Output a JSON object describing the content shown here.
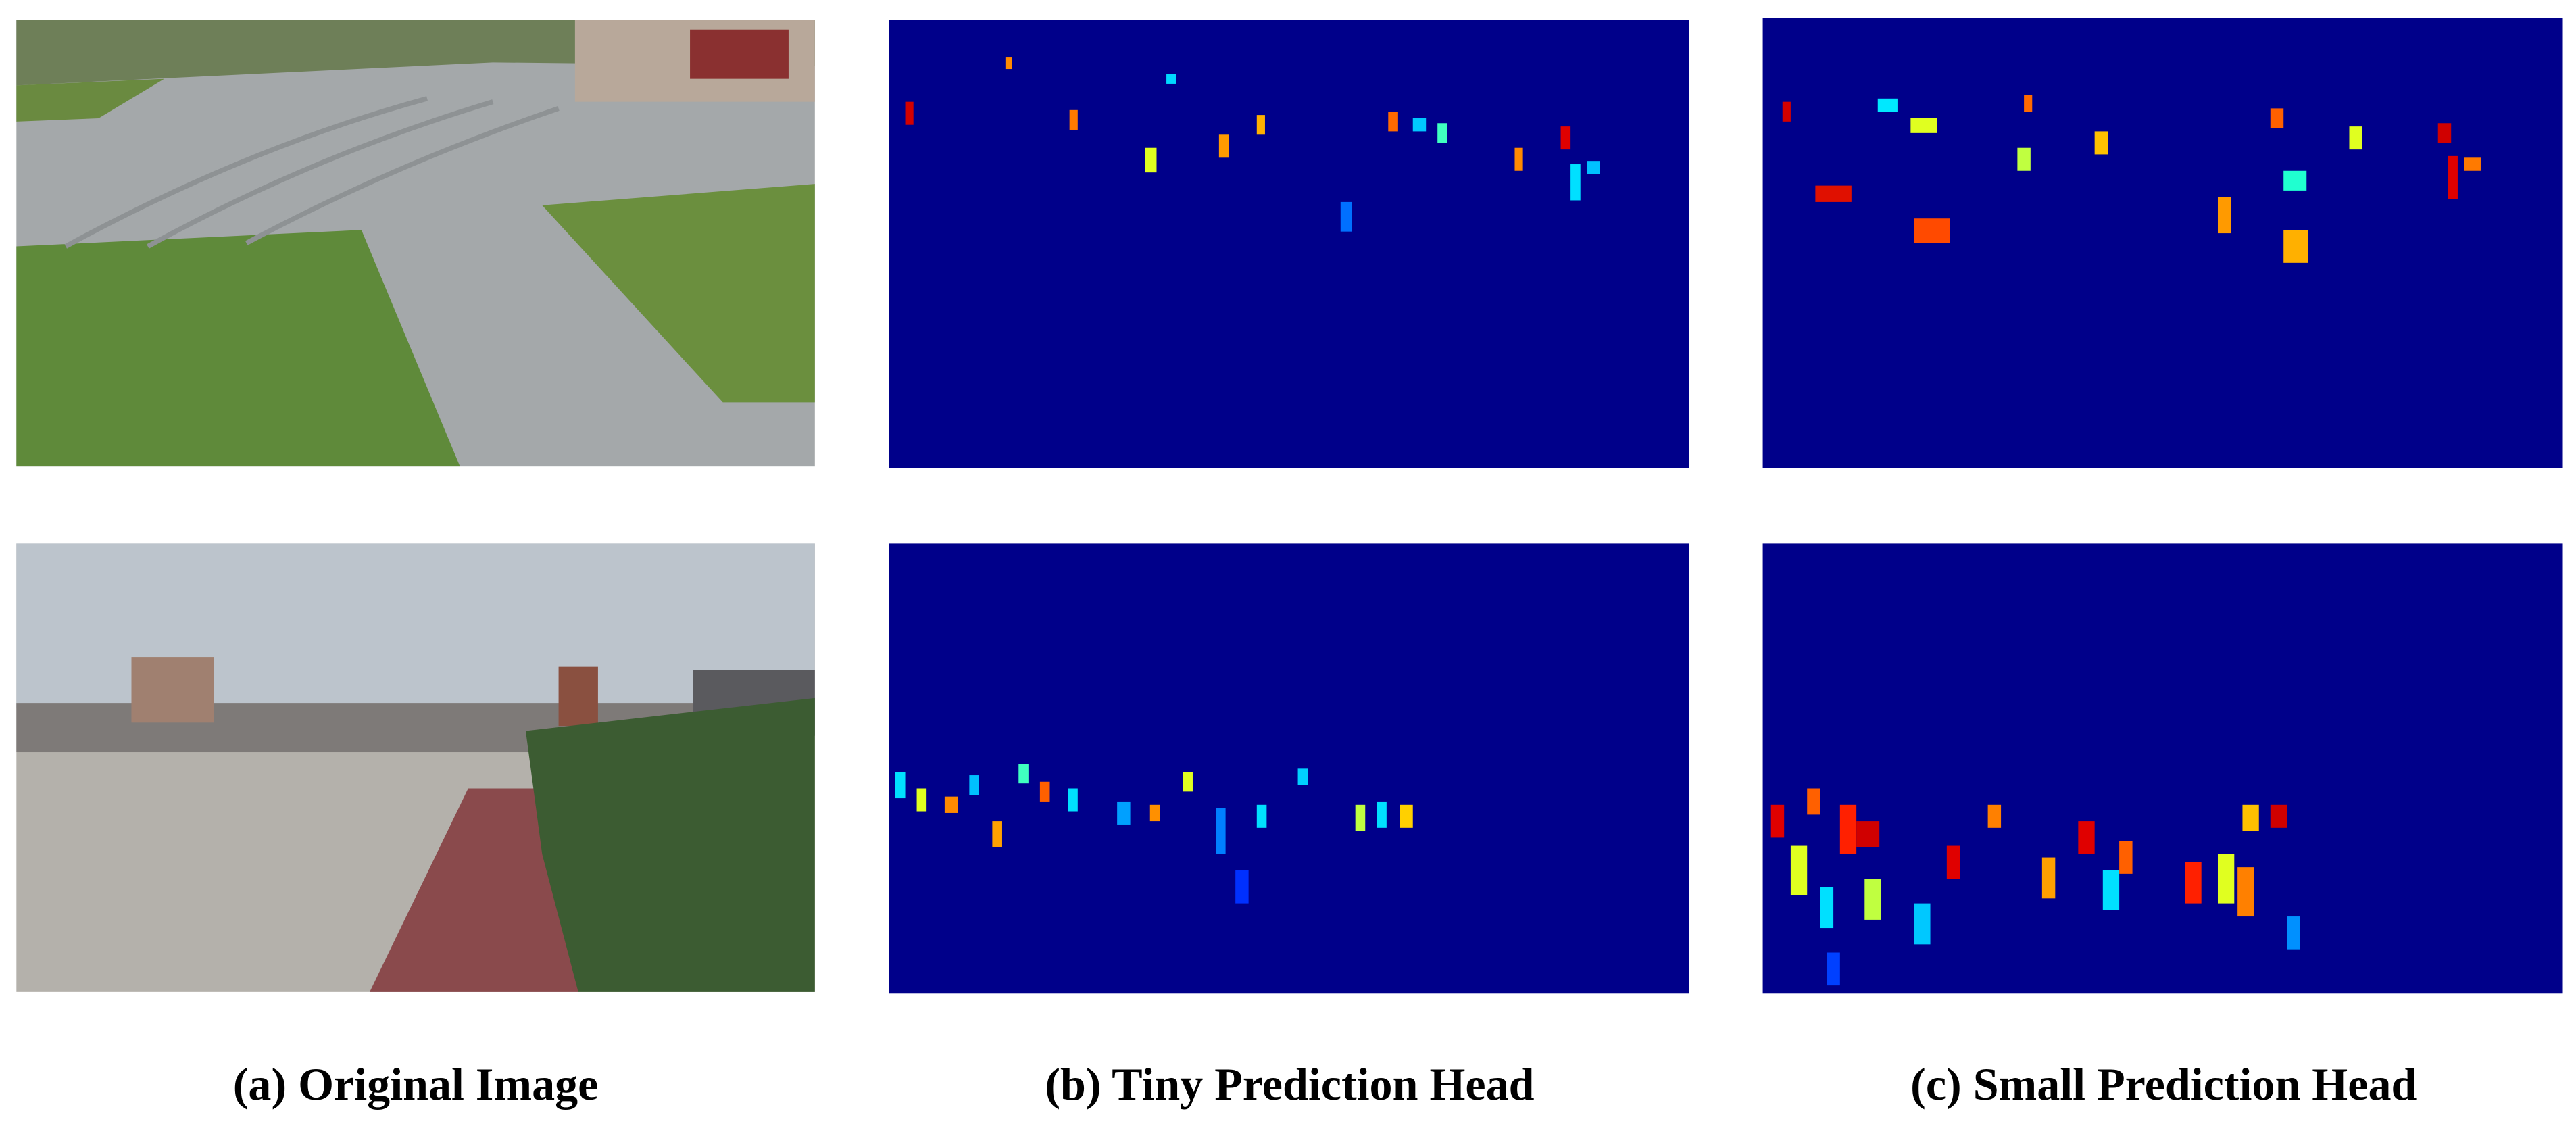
{
  "figure": {
    "captions": [
      "(a) Original Image",
      "(b) Tiny Prediction Head",
      "(c) Small Prediction Head"
    ]
  }
}
